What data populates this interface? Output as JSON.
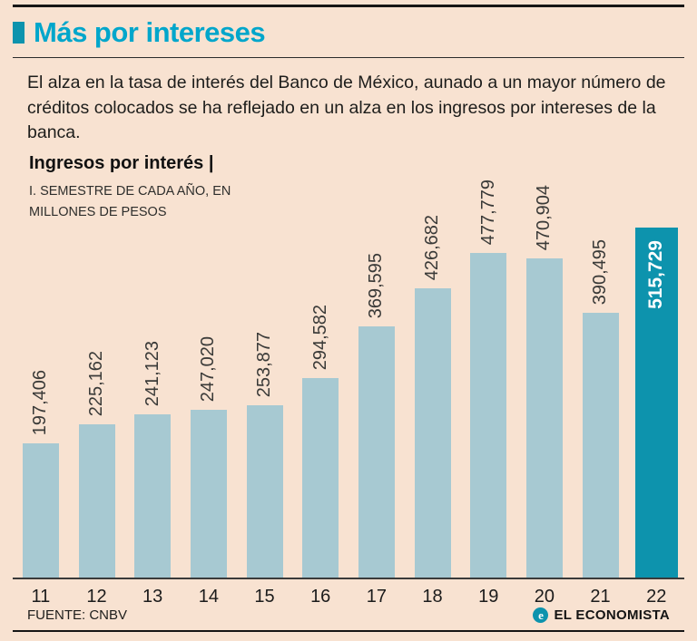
{
  "header": {
    "title": "Más por intereses",
    "intro": "El alza en la tasa de interés del Banco de México, aunado a un mayor número de créditos colocados se ha reflejado en un alza en los ingresos por intereses de la banca."
  },
  "chart_header": {
    "title": "Ingresos por interés |",
    "subtitle_line1": "I. SEMESTRE DE CADA AÑO, EN",
    "subtitle_line2": "MILLONES DE PESOS"
  },
  "chart_data": {
    "type": "bar",
    "title": "Ingresos por interés",
    "subtitle": "I. Semestre de cada año, en millones de pesos",
    "categories": [
      "11",
      "12",
      "13",
      "14",
      "15",
      "16",
      "17",
      "18",
      "19",
      "20",
      "21",
      "22"
    ],
    "values": [
      197406,
      225162,
      241123,
      247020,
      253877,
      294582,
      369595,
      426682,
      477779,
      470904,
      390495,
      515729
    ],
    "value_labels": [
      "197,406",
      "225,162",
      "241,123",
      "247,020",
      "253,877",
      "294,582",
      "369,595",
      "426,682",
      "477,779",
      "470,904",
      "390,495",
      "515,729"
    ],
    "highlight_index": 11,
    "ylim": [
      0,
      515729
    ],
    "grid": false,
    "legend": false,
    "colors": {
      "bar": "#a7c9d2",
      "highlight_bar": "#0d93ad",
      "title": "#00a6cb",
      "background": "#f8e2d1"
    }
  },
  "footer": {
    "source": "FUENTE: CNBV",
    "brand": "EL ECONOMISTA",
    "brand_icon": "e"
  }
}
